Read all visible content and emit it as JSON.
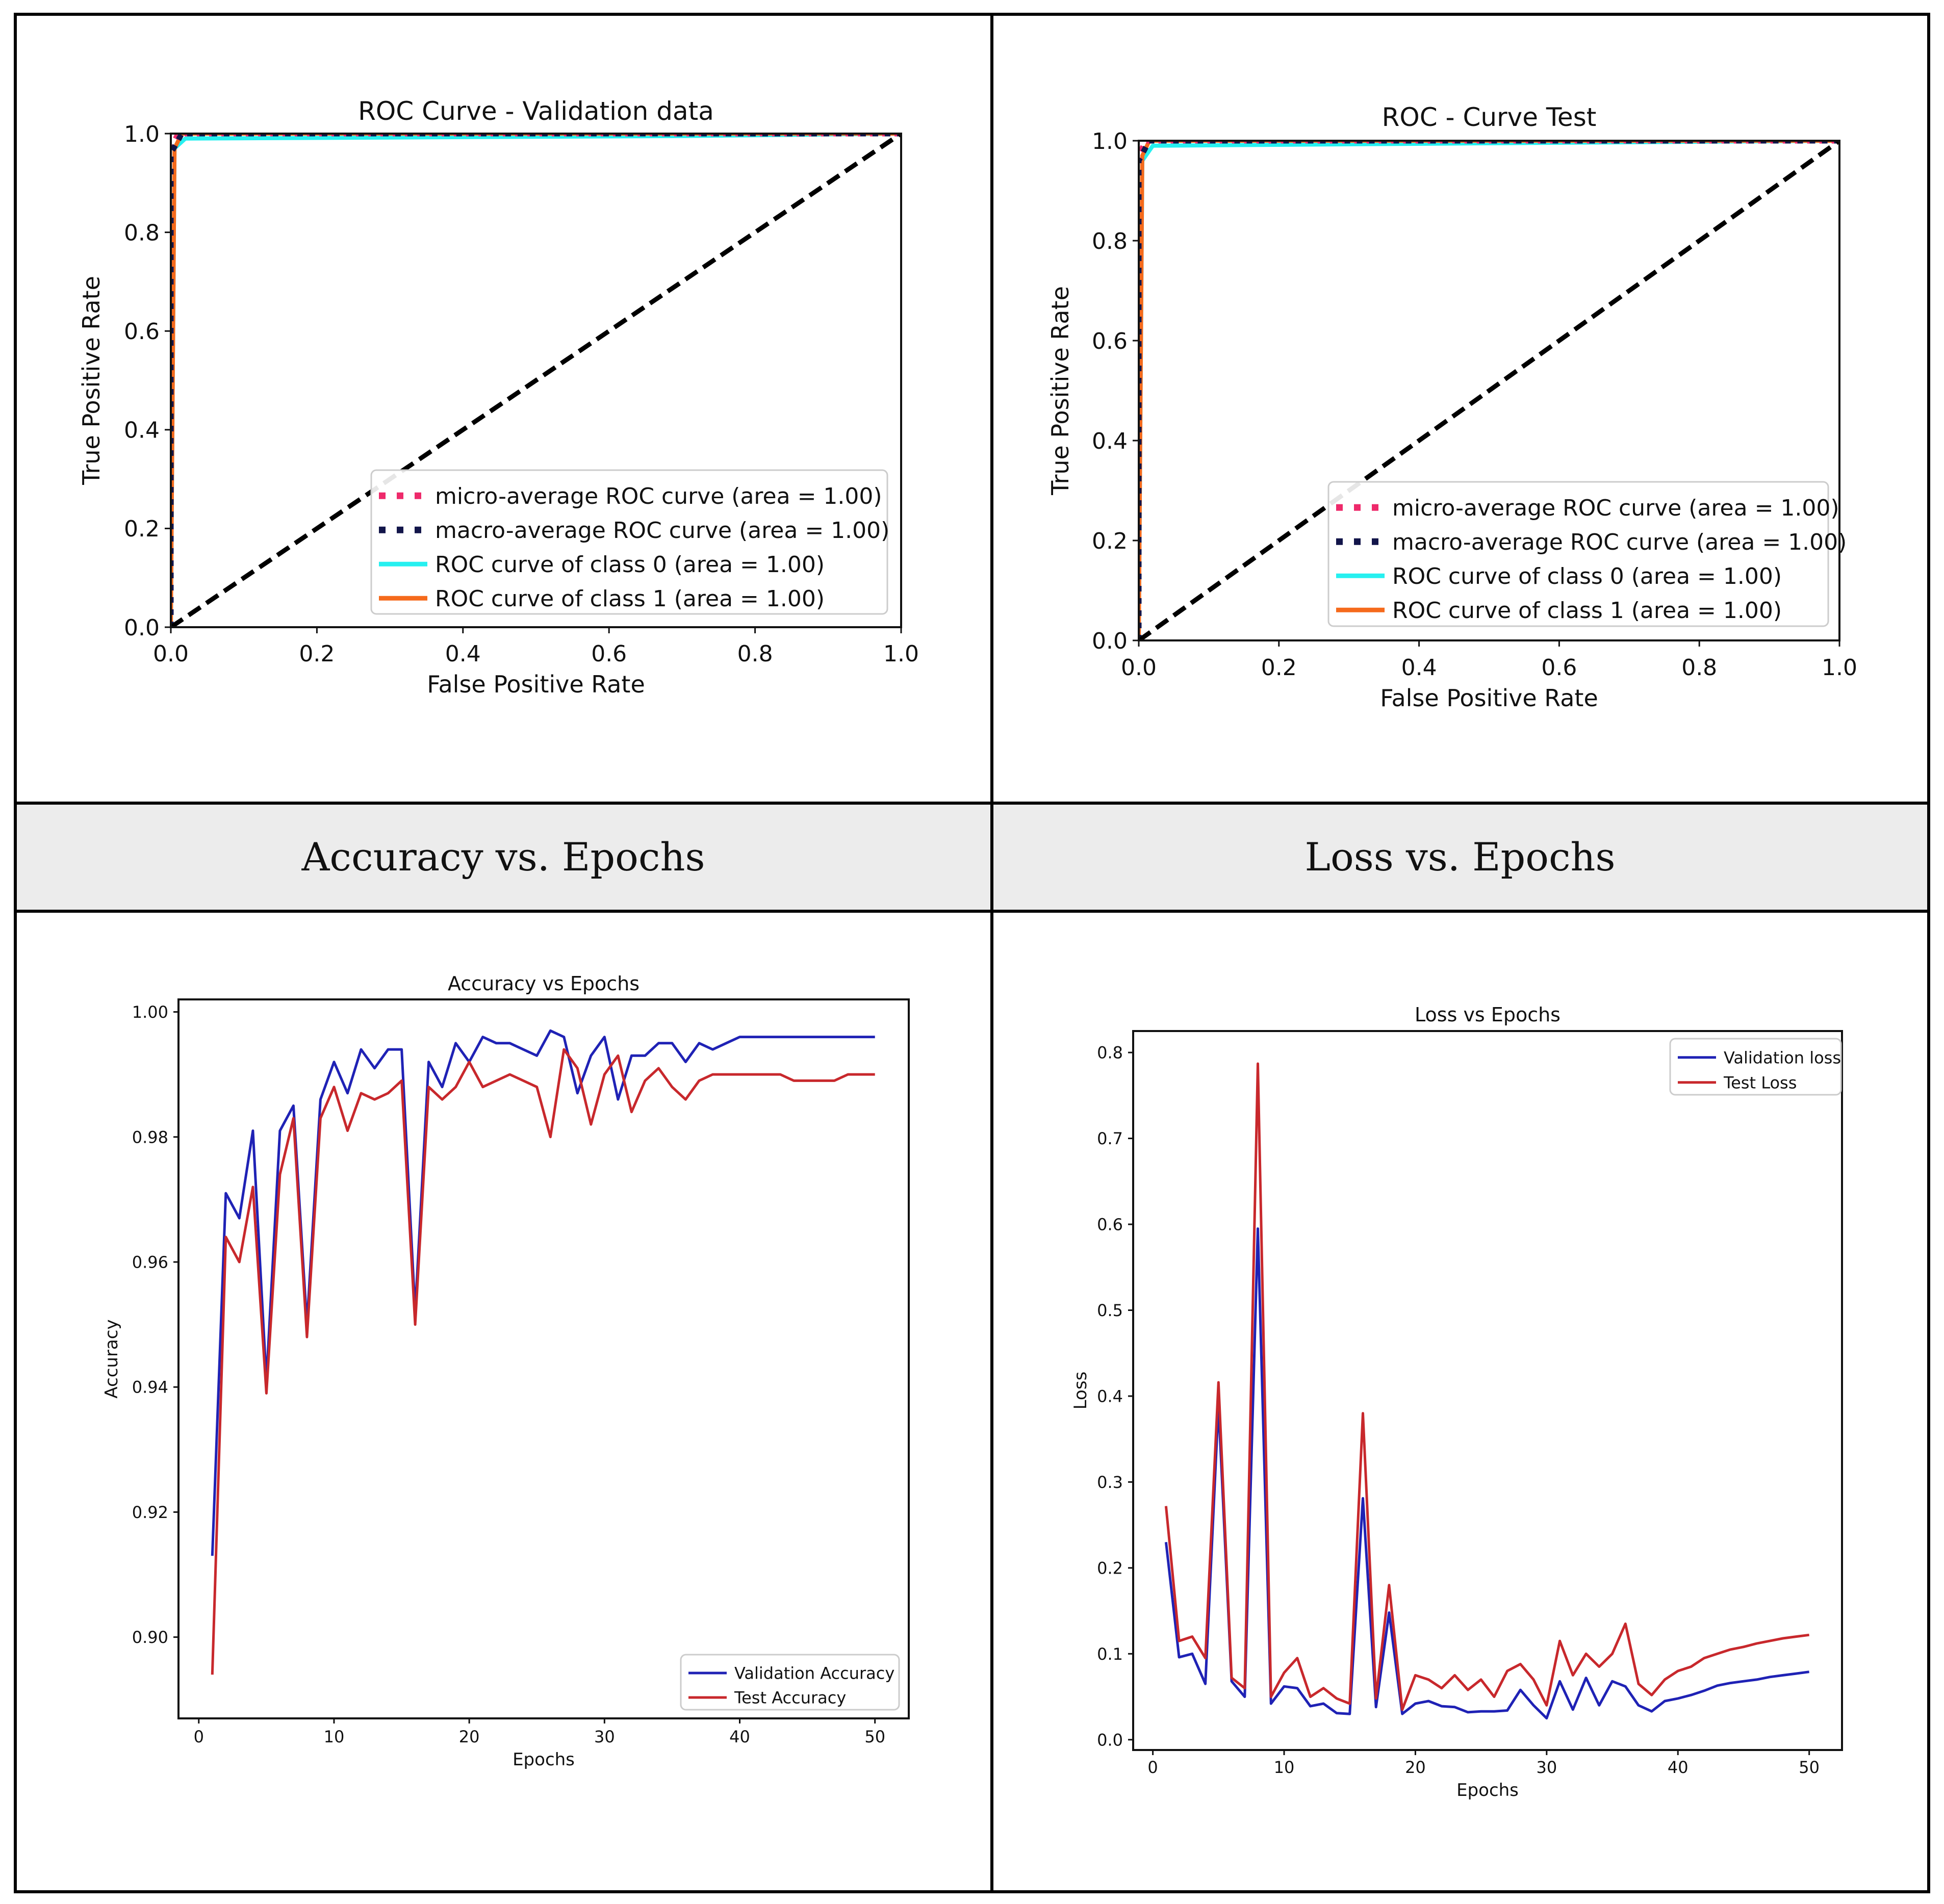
{
  "headers": {
    "accuracy": "Accuracy vs. Epochs",
    "loss": "Loss vs. Epochs"
  },
  "colors": {
    "micro": "#ee2a6b",
    "macro": "#12154a",
    "class0": "#26f0f0",
    "class1": "#f56a1c",
    "chance": "#000000",
    "validation": "#1f22b5",
    "test": "#c8282c",
    "header_bg": "#ececec"
  },
  "chart_data": [
    {
      "id": "roc_val",
      "type": "line",
      "title": "ROC Curve - Validation data",
      "xlabel": "False Positive Rate",
      "ylabel": "True Positive Rate",
      "xlim": [
        0,
        1
      ],
      "ylim": [
        0,
        1
      ],
      "xticks": [
        0,
        0.2,
        0.4,
        0.6,
        0.8,
        1.0
      ],
      "xtick_labels": [
        "0.0",
        "0.2",
        "0.4",
        "0.6",
        "0.8",
        "1.0"
      ],
      "yticks": [
        0,
        0.2,
        0.4,
        0.6,
        0.8,
        1.0
      ],
      "ytick_labels": [
        "0.0",
        "0.2",
        "0.4",
        "0.6",
        "0.8",
        "1.0"
      ],
      "legend_position": "lower-right",
      "series": [
        {
          "key": "micro",
          "name": "micro-average ROC curve (area = 1.00)",
          "style": "dotted",
          "x": [
            0,
            0,
            0.01,
            1
          ],
          "y": [
            0,
            0.97,
            1.0,
            1.0
          ]
        },
        {
          "key": "macro",
          "name": "macro-average ROC curve (area = 1.00)",
          "style": "dotted",
          "x": [
            0,
            0,
            0.015,
            1
          ],
          "y": [
            0,
            0.96,
            1.0,
            1.0
          ]
        },
        {
          "key": "class0",
          "name": "ROC curve of class 0 (area = 1.00)",
          "style": "solid",
          "x": [
            0,
            0.005,
            0.02,
            0.7,
            1
          ],
          "y": [
            0,
            0.97,
            0.99,
            0.995,
            1.0
          ]
        },
        {
          "key": "class1",
          "name": "ROC curve of class 1 (area = 1.00)",
          "style": "solid",
          "x": [
            0,
            0.005,
            0.015,
            1
          ],
          "y": [
            0,
            0.97,
            1.0,
            1.0
          ]
        },
        {
          "key": "chance",
          "name": "",
          "style": "dashed",
          "x": [
            0,
            1
          ],
          "y": [
            0,
            1
          ]
        }
      ]
    },
    {
      "id": "roc_test",
      "type": "line",
      "title": "ROC - Curve Test",
      "xlabel": "False Positive Rate",
      "ylabel": "True Positive Rate",
      "xlim": [
        0,
        1
      ],
      "ylim": [
        0,
        1
      ],
      "xticks": [
        0,
        0.2,
        0.4,
        0.6,
        0.8,
        1.0
      ],
      "xtick_labels": [
        "0.0",
        "0.2",
        "0.4",
        "0.6",
        "0.8",
        "1.0"
      ],
      "yticks": [
        0,
        0.2,
        0.4,
        0.6,
        0.8,
        1.0
      ],
      "ytick_labels": [
        "0.0",
        "0.2",
        "0.4",
        "0.6",
        "0.8",
        "1.0"
      ],
      "legend_position": "lower-right",
      "series": [
        {
          "key": "micro",
          "name": "micro-average ROC curve (area = 1.00)",
          "style": "dotted",
          "x": [
            0,
            0,
            0.01,
            1
          ],
          "y": [
            0,
            0.97,
            1.0,
            1.0
          ]
        },
        {
          "key": "macro",
          "name": "macro-average ROC curve (area = 1.00)",
          "style": "dotted",
          "x": [
            0,
            0,
            0.015,
            1
          ],
          "y": [
            0,
            0.96,
            1.0,
            1.0
          ]
        },
        {
          "key": "class0",
          "name": "ROC curve of class 0 (area = 1.00)",
          "style": "solid",
          "x": [
            0,
            0.005,
            0.02,
            0.5,
            1
          ],
          "y": [
            0,
            0.96,
            0.99,
            0.995,
            1.0
          ]
        },
        {
          "key": "class1",
          "name": "ROC curve of class 1 (area = 1.00)",
          "style": "solid",
          "x": [
            0,
            0.005,
            0.015,
            1
          ],
          "y": [
            0,
            0.97,
            1.0,
            1.0
          ]
        },
        {
          "key": "chance",
          "name": "",
          "style": "dashed",
          "x": [
            0,
            1
          ],
          "y": [
            0,
            1
          ]
        }
      ]
    },
    {
      "id": "accuracy",
      "type": "line",
      "title": "Accuracy vs Epochs",
      "xlabel": "Epochs",
      "ylabel": "Accuracy",
      "xlim": [
        -1.5,
        52.5
      ],
      "ylim": [
        0.887,
        1.002
      ],
      "xticks": [
        0,
        10,
        20,
        30,
        40,
        50
      ],
      "xtick_labels": [
        "0",
        "10",
        "20",
        "30",
        "40",
        "50"
      ],
      "yticks": [
        0.9,
        0.92,
        0.94,
        0.96,
        0.98,
        1.0
      ],
      "ytick_labels": [
        "0.90",
        "0.92",
        "0.94",
        "0.96",
        "0.98",
        "1.00"
      ],
      "legend_position": "lower-right",
      "x": [
        1,
        2,
        3,
        4,
        5,
        6,
        7,
        8,
        9,
        10,
        11,
        12,
        13,
        14,
        15,
        16,
        17,
        18,
        19,
        20,
        21,
        22,
        23,
        24,
        25,
        26,
        27,
        28,
        29,
        30,
        31,
        32,
        33,
        34,
        35,
        36,
        37,
        38,
        39,
        40,
        41,
        42,
        43,
        44,
        45,
        46,
        47,
        48,
        49,
        50
      ],
      "series": [
        {
          "key": "validation",
          "name": "Validation Accuracy",
          "values": [
            0.913,
            0.971,
            0.967,
            0.981,
            0.941,
            0.981,
            0.985,
            0.95,
            0.986,
            0.992,
            0.987,
            0.994,
            0.991,
            0.994,
            0.994,
            0.952,
            0.992,
            0.988,
            0.995,
            0.992,
            0.996,
            0.995,
            0.995,
            0.994,
            0.993,
            0.997,
            0.996,
            0.987,
            0.993,
            0.996,
            0.986,
            0.993,
            0.993,
            0.995,
            0.995,
            0.992,
            0.995,
            0.994,
            0.995,
            0.996,
            0.996,
            0.996,
            0.996,
            0.996,
            0.996,
            0.996,
            0.996,
            0.996,
            0.996,
            0.996
          ]
        },
        {
          "key": "test",
          "name": "Test Accuracy",
          "values": [
            0.894,
            0.964,
            0.96,
            0.972,
            0.939,
            0.974,
            0.983,
            0.948,
            0.983,
            0.988,
            0.981,
            0.987,
            0.986,
            0.987,
            0.989,
            0.95,
            0.988,
            0.986,
            0.988,
            0.992,
            0.988,
            0.989,
            0.99,
            0.989,
            0.988,
            0.98,
            0.994,
            0.991,
            0.982,
            0.99,
            0.993,
            0.984,
            0.989,
            0.991,
            0.988,
            0.986,
            0.989,
            0.99,
            0.99,
            0.99,
            0.99,
            0.99,
            0.99,
            0.989,
            0.989,
            0.989,
            0.989,
            0.99,
            0.99,
            0.99
          ]
        }
      ]
    },
    {
      "id": "loss",
      "type": "line",
      "title": "Loss vs Epochs",
      "xlabel": "Epochs",
      "ylabel": "Loss",
      "xlim": [
        -1.5,
        52.5
      ],
      "ylim": [
        -0.012,
        0.825
      ],
      "xticks": [
        0,
        10,
        20,
        30,
        40,
        50
      ],
      "xtick_labels": [
        "0",
        "10",
        "20",
        "30",
        "40",
        "50"
      ],
      "yticks": [
        0,
        0.1,
        0.2,
        0.3,
        0.4,
        0.5,
        0.6,
        0.7,
        0.8
      ],
      "ytick_labels": [
        "0.0",
        "0.1",
        "0.2",
        "0.3",
        "0.4",
        "0.5",
        "0.6",
        "0.7",
        "0.8"
      ],
      "legend_position": "top-right",
      "x": [
        1,
        2,
        3,
        4,
        5,
        6,
        7,
        8,
        9,
        10,
        11,
        12,
        13,
        14,
        15,
        16,
        17,
        18,
        19,
        20,
        21,
        22,
        23,
        24,
        25,
        26,
        27,
        28,
        29,
        30,
        31,
        32,
        33,
        34,
        35,
        36,
        37,
        38,
        39,
        40,
        41,
        42,
        43,
        44,
        45,
        46,
        47,
        48,
        49,
        50
      ],
      "series": [
        {
          "key": "validation",
          "name": "Validation loss",
          "values": [
            0.23,
            0.096,
            0.1,
            0.065,
            0.39,
            0.068,
            0.05,
            0.595,
            0.042,
            0.062,
            0.06,
            0.039,
            0.042,
            0.031,
            0.03,
            0.281,
            0.038,
            0.148,
            0.03,
            0.042,
            0.045,
            0.039,
            0.038,
            0.032,
            0.033,
            0.033,
            0.034,
            0.058,
            0.04,
            0.025,
            0.068,
            0.035,
            0.072,
            0.04,
            0.068,
            0.062,
            0.04,
            0.033,
            0.045,
            0.048,
            0.052,
            0.057,
            0.063,
            0.066,
            0.068,
            0.07,
            0.073,
            0.075,
            0.077,
            0.079
          ]
        },
        {
          "key": "test",
          "name": "Test Loss",
          "values": [
            0.272,
            0.115,
            0.12,
            0.095,
            0.416,
            0.072,
            0.06,
            0.787,
            0.05,
            0.078,
            0.095,
            0.05,
            0.06,
            0.048,
            0.042,
            0.38,
            0.048,
            0.18,
            0.035,
            0.075,
            0.07,
            0.06,
            0.075,
            0.058,
            0.07,
            0.05,
            0.08,
            0.088,
            0.07,
            0.04,
            0.115,
            0.075,
            0.1,
            0.085,
            0.1,
            0.135,
            0.065,
            0.052,
            0.07,
            0.08,
            0.085,
            0.095,
            0.1,
            0.105,
            0.108,
            0.112,
            0.115,
            0.118,
            0.12,
            0.122
          ]
        }
      ]
    }
  ]
}
